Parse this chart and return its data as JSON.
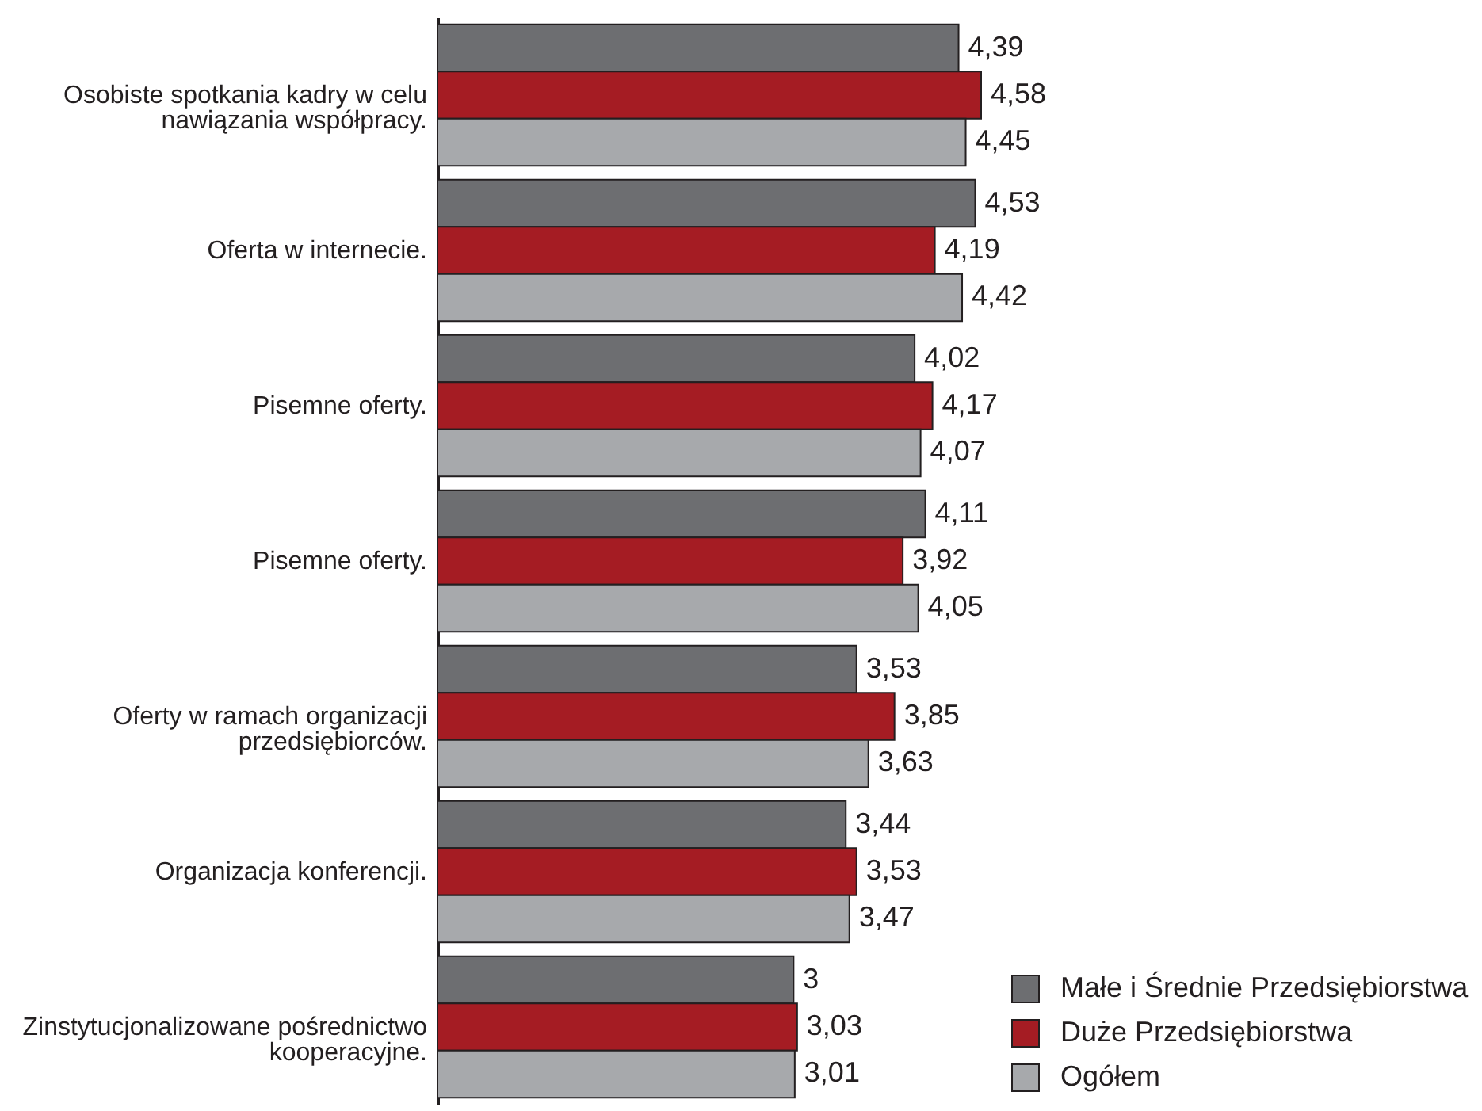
{
  "chart_data": {
    "type": "bar",
    "orientation": "horizontal",
    "categories": [
      "Osobiste spotkania kadry w celu nawiązania współpracy.",
      "Oferta w internecie.",
      "Pisemne oferty.",
      "Pisemne oferty.",
      "Oferty w ramach organizacji przedsiębiorców.",
      "Organizacja konferencji.",
      "Zinstytucjonalizowane pośrednictwo kooperacyjne."
    ],
    "series": [
      {
        "name": "Małe i Średnie Przedsiębiorstwa",
        "color": "#6d6e71",
        "values": [
          4.39,
          4.53,
          4.02,
          4.11,
          3.53,
          3.44,
          3
        ],
        "value_labels": [
          "4,39",
          "4,53",
          "4,02",
          "4,11",
          "3,53",
          "3,44",
          "3"
        ]
      },
      {
        "name": "Duże Przedsiębiorstwa",
        "color": "#a51c23",
        "values": [
          4.58,
          4.19,
          4.17,
          3.92,
          3.85,
          3.53,
          3.03
        ],
        "value_labels": [
          "4,58",
          "4,19",
          "4,17",
          "3,92",
          "3,85",
          "3,53",
          "3,03"
        ]
      },
      {
        "name": "Ogółem",
        "color": "#a7a9ac",
        "values": [
          4.45,
          4.42,
          4.07,
          4.05,
          3.63,
          3.47,
          3.01
        ],
        "value_labels": [
          "4,45",
          "4,42",
          "4,07",
          "4,05",
          "3,63",
          "3,47",
          "3,01"
        ]
      }
    ],
    "legend": "bottom right"
  }
}
